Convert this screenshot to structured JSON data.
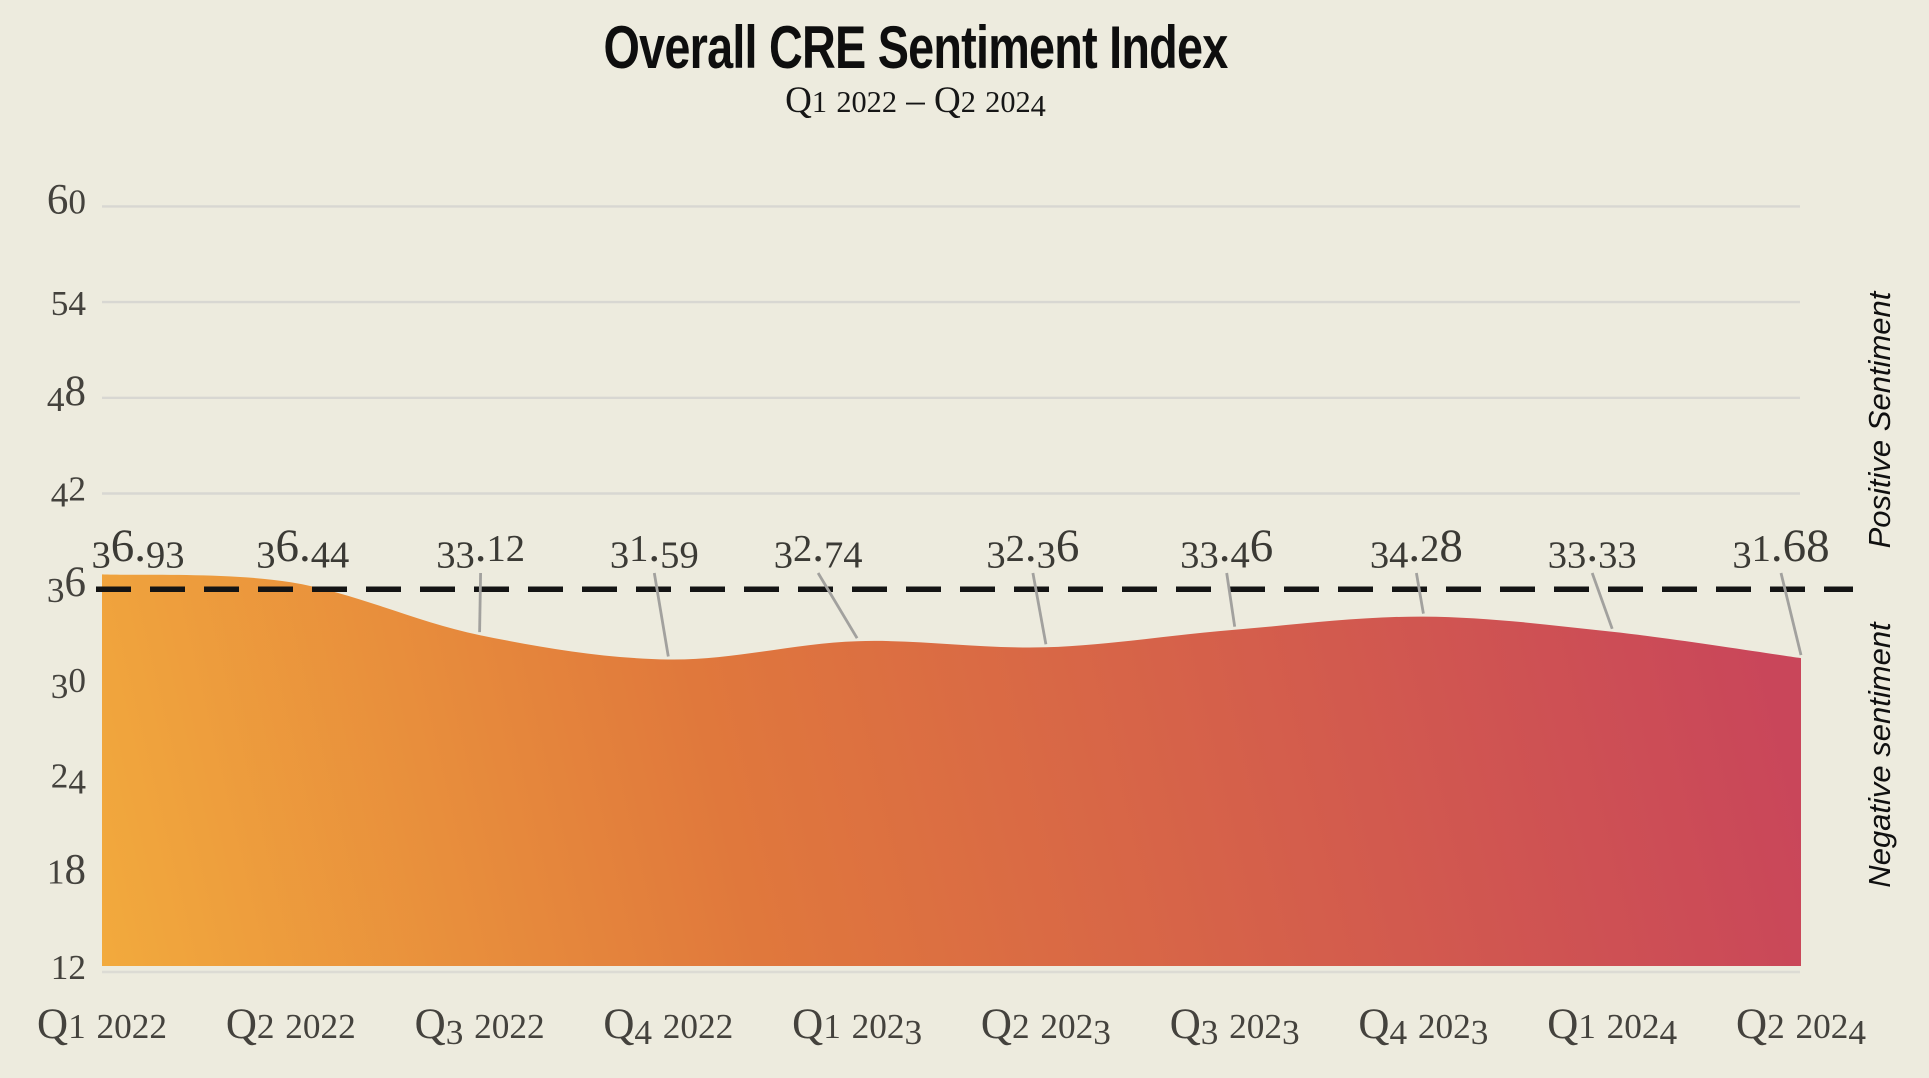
{
  "chart_data": {
    "type": "area",
    "title": "Overall CRE Sentiment Index",
    "subtitle": "Q1 2022 – Q2 2024",
    "categories": [
      "Q1 2022",
      "Q2 2022",
      "Q3 2022",
      "Q4 2022",
      "Q1 2023",
      "Q2 2023",
      "Q3 2023",
      "Q4 2023",
      "Q1 2024",
      "Q2 2024"
    ],
    "values": [
      36.93,
      36.44,
      33.12,
      31.59,
      32.74,
      32.36,
      33.46,
      34.28,
      33.33,
      31.68
    ],
    "value_labels": [
      "36.93",
      "36.44",
      "33.12",
      "31.59",
      "32.74",
      "32.36",
      "33.46",
      "34.28",
      "33.33",
      "31.68"
    ],
    "yticks": [
      60,
      54,
      48,
      42,
      36,
      30,
      24,
      18,
      12
    ],
    "ylim": [
      12,
      63
    ],
    "grid": "horizontal",
    "legend": "none",
    "baseline": {
      "value": 36,
      "style": "dashed"
    },
    "right_labels": {
      "positive": "Positive Sentiment",
      "negative": "Negative sentiment"
    },
    "label_offsets": [
      36,
      12,
      1,
      -14,
      -39,
      -13,
      -8,
      -7,
      -20,
      -20
    ],
    "colors": {
      "background": "#edebde",
      "gradient_bottom_left": "#f2aa3d",
      "gradient_mid": "#e0783c",
      "gradient_top_right": "#c9465a",
      "baseline_color": "#141414",
      "grid_color": "#d8d7d2",
      "bottom_line_color": "#dcdbd4",
      "leader_color": "#a2a19e",
      "text_color": "#44423d",
      "data_label_color": "#3b3a35",
      "right_label_color": "#101010"
    }
  }
}
